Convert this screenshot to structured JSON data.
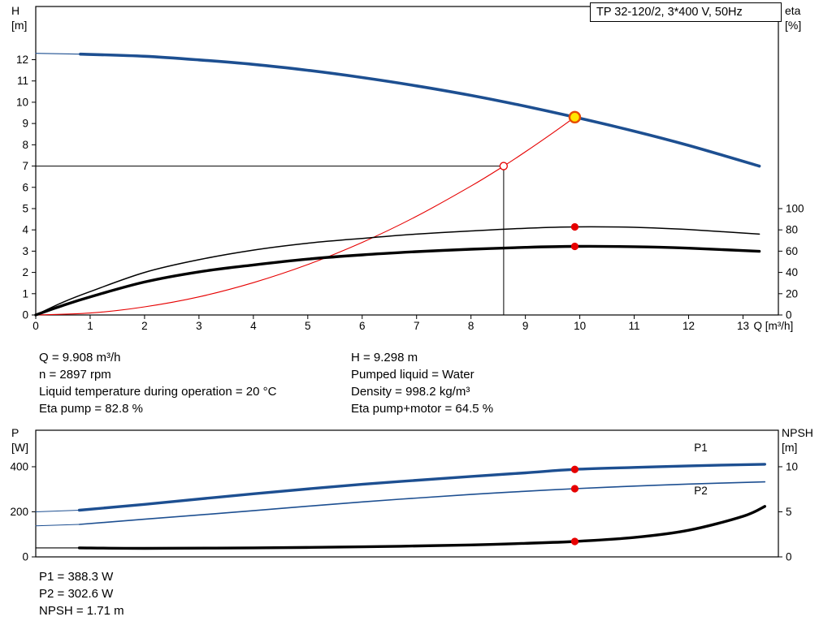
{
  "title_box": "TP 32-120/2, 3*400 V, 50Hz",
  "labels": {
    "h": "H",
    "h_unit": "[m]",
    "eta": "eta",
    "eta_unit": "[%]",
    "p": "P",
    "p_unit": "[W]",
    "npsh": "NPSH",
    "npsh_unit": "[m]"
  },
  "info": {
    "q": "Q = 9.908 m³/h",
    "n": "n = 2897 rpm",
    "temp": "Liquid temperature during operation = 20 °C",
    "eta_pump": "Eta pump = 82.8 %",
    "h": "H = 9.298 m",
    "liquid": "Pumped liquid = Water",
    "density": "Density = 998.2 kg/m³",
    "eta_total": "Eta pump+motor = 64.5 %",
    "p1": "P1 = 388.3 W",
    "p2": "P2 = 302.6 W",
    "npsh": "NPSH = 1.71 m"
  },
  "colors": {
    "curve_blue": "#1d4f91",
    "marker_red": "#e60000",
    "duty_yellow": "#ffe600",
    "duty_ring": "#e64a00",
    "black": "#000000"
  },
  "chart_data": [
    {
      "id": "chart-top",
      "type": "line",
      "title": "TP 32-120/2, 3*400 V, 50Hz",
      "xlabel": "Q [m³/h]",
      "ylabel_left": "H [m]",
      "ylabel_right": "eta [%]",
      "xlim": [
        0,
        13.65
      ],
      "ylim_left": [
        0,
        14.5
      ],
      "ylim_right": [
        0,
        290
      ],
      "x_ticks": [
        0,
        1,
        2,
        3,
        4,
        5,
        6,
        7,
        8,
        9,
        10,
        11,
        12,
        13
      ],
      "y_ticks_left": [
        0,
        1,
        2,
        3,
        4,
        5,
        6,
        7,
        8,
        9,
        10,
        11,
        12
      ],
      "y_ticks_right": [
        0,
        20,
        40,
        60,
        80,
        100
      ],
      "grid": false,
      "legend": "none",
      "series": [
        {
          "name": "head-curve-lowflow",
          "axis": "left",
          "color": "#1d4f91",
          "width": 1.2,
          "smooth": false,
          "x": [
            0,
            0.82
          ],
          "y": [
            12.3,
            12.26
          ]
        },
        {
          "name": "head-curve",
          "axis": "left",
          "color": "#1d4f91",
          "width": 3.6,
          "x": [
            0.82,
            2,
            3,
            4,
            5,
            6,
            7,
            8,
            9,
            9.908,
            11,
            12,
            13.3
          ],
          "y": [
            12.26,
            12.16,
            11.99,
            11.78,
            11.5,
            11.16,
            10.77,
            10.32,
            9.81,
            9.298,
            8.64,
            7.97,
            7.0
          ]
        },
        {
          "name": "system-curve",
          "axis": "left",
          "color": "#e60000",
          "width": 1.1,
          "x": [
            0,
            1,
            2,
            3,
            4,
            5,
            6,
            7,
            8,
            8.6,
            9,
            9.5,
            9.908
          ],
          "y": [
            0,
            0.09,
            0.38,
            0.85,
            1.52,
            2.37,
            3.41,
            4.64,
            6.06,
            7.0,
            7.67,
            8.55,
            9.298
          ]
        },
        {
          "name": "eta-pump-curve",
          "axis": "right",
          "color": "#000000",
          "width": 1.5,
          "x": [
            0,
            0.5,
            1,
            2,
            3,
            4,
            5,
            6,
            7,
            8,
            9,
            9.908,
            11,
            12,
            13.3
          ],
          "y": [
            0,
            12,
            22,
            40,
            52,
            61,
            67.5,
            72,
            76,
            79,
            81.5,
            82.8,
            82.4,
            80.3,
            76
          ]
        },
        {
          "name": "eta-pump-motor-curve",
          "axis": "right",
          "color": "#000000",
          "width": 3.4,
          "x": [
            0,
            0.5,
            1,
            2,
            3,
            4,
            5,
            6,
            7,
            8,
            9,
            9.908,
            11,
            12,
            13.3
          ],
          "y": [
            0,
            9,
            17,
            31,
            40.5,
            47,
            52.5,
            56.5,
            59.5,
            61.8,
            63.6,
            64.5,
            64.2,
            62.8,
            59.8
          ]
        },
        {
          "name": "ref-head-hline",
          "axis": "left",
          "color": "#000000",
          "width": 1,
          "smooth": false,
          "x": [
            0,
            8.6
          ],
          "y": [
            7,
            7
          ]
        },
        {
          "name": "ref-flow-vline",
          "axis": "left",
          "color": "#000000",
          "width": 1,
          "smooth": false,
          "x": [
            8.6,
            8.6
          ],
          "y": [
            7,
            0
          ]
        }
      ],
      "markers": [
        {
          "name": "ref-point-open",
          "x": 8.6,
          "y": 7,
          "axis": "left",
          "r": 4.5,
          "fill": "#ffffff",
          "stroke": "#e60000",
          "stroke_width": 1.3
        },
        {
          "name": "duty-point",
          "x": 9.908,
          "y": 9.298,
          "axis": "left",
          "r": 6.5,
          "fill": "#ffe600",
          "stroke": "#e64a00",
          "stroke_width": 2.4
        },
        {
          "name": "eta-pump-duty-dot",
          "x": 9.908,
          "y": 82.8,
          "axis": "right",
          "r": 4.6,
          "fill": "#e60000",
          "stroke": "none",
          "stroke_width": 0
        },
        {
          "name": "eta-pump-motor-duty-dot",
          "x": 9.908,
          "y": 64.5,
          "axis": "right",
          "r": 4.6,
          "fill": "#e60000",
          "stroke": "none",
          "stroke_width": 0
        }
      ],
      "annotations": []
    },
    {
      "id": "chart-bottom",
      "type": "line",
      "title": "",
      "xlabel": "",
      "ylabel_left": "P [W]",
      "ylabel_right": "NPSH [m]",
      "xlim": [
        0,
        13.65
      ],
      "ylim_left": [
        0,
        562
      ],
      "ylim_right": [
        0,
        14.05
      ],
      "x_ticks": [],
      "y_ticks_left": [
        0,
        200,
        400
      ],
      "y_ticks_right": [
        0,
        5,
        10
      ],
      "grid": false,
      "legend": "inline",
      "series": [
        {
          "name": "p1-lowflow",
          "axis": "left",
          "color": "#1d4f91",
          "width": 1.1,
          "smooth": false,
          "x": [
            0,
            0.8
          ],
          "y": [
            200,
            207
          ]
        },
        {
          "name": "p1-curve",
          "axis": "left",
          "color": "#1d4f91",
          "width": 3.4,
          "x": [
            0.8,
            2,
            4,
            6,
            8,
            9,
            9.908,
            11,
            12,
            13.4
          ],
          "y": [
            207,
            233,
            280,
            322,
            357,
            373,
            388.3,
            397,
            404,
            411
          ]
        },
        {
          "name": "p2-lowflow",
          "axis": "left",
          "color": "#1d4f91",
          "width": 1,
          "smooth": false,
          "x": [
            0,
            0.8
          ],
          "y": [
            138,
            144
          ]
        },
        {
          "name": "p2-curve",
          "axis": "left",
          "color": "#1d4f91",
          "width": 1.6,
          "x": [
            0.8,
            2,
            4,
            6,
            8,
            9,
            9.908,
            11,
            12,
            13.4
          ],
          "y": [
            144,
            167,
            205,
            244,
            277,
            291,
            302.6,
            314,
            323,
            333
          ]
        },
        {
          "name": "npsh-lowflow",
          "axis": "right",
          "color": "#000000",
          "width": 1.1,
          "smooth": false,
          "x": [
            0,
            0.8
          ],
          "y": [
            1.0,
            1.0
          ]
        },
        {
          "name": "npsh-curve",
          "axis": "right",
          "color": "#000000",
          "width": 3.4,
          "x": [
            0.8,
            2,
            4,
            6,
            8,
            9,
            9.908,
            11,
            12,
            13,
            13.4
          ],
          "y": [
            1.0,
            0.95,
            1.0,
            1.12,
            1.32,
            1.5,
            1.71,
            2.15,
            2.95,
            4.5,
            5.6
          ]
        }
      ],
      "markers": [
        {
          "name": "p1-duty-dot",
          "x": 9.908,
          "y": 388.3,
          "axis": "left",
          "r": 4.6,
          "fill": "#e60000",
          "stroke": "none",
          "stroke_width": 0
        },
        {
          "name": "p2-duty-dot",
          "x": 9.908,
          "y": 302.6,
          "axis": "left",
          "r": 4.6,
          "fill": "#e60000",
          "stroke": "none",
          "stroke_width": 0
        },
        {
          "name": "npsh-duty-dot",
          "x": 9.908,
          "y": 1.71,
          "axis": "right",
          "r": 4.6,
          "fill": "#e60000",
          "stroke": "none",
          "stroke_width": 0
        }
      ],
      "annotations": [
        {
          "name": "p1-curve-label",
          "text": "P1",
          "x": 12.1,
          "y": 468,
          "axis": "left",
          "color": "#1d4f91"
        },
        {
          "name": "p2-curve-label",
          "text": "P2",
          "x": 12.1,
          "y": 278,
          "axis": "left",
          "color": "#1d4f91"
        }
      ]
    }
  ]
}
